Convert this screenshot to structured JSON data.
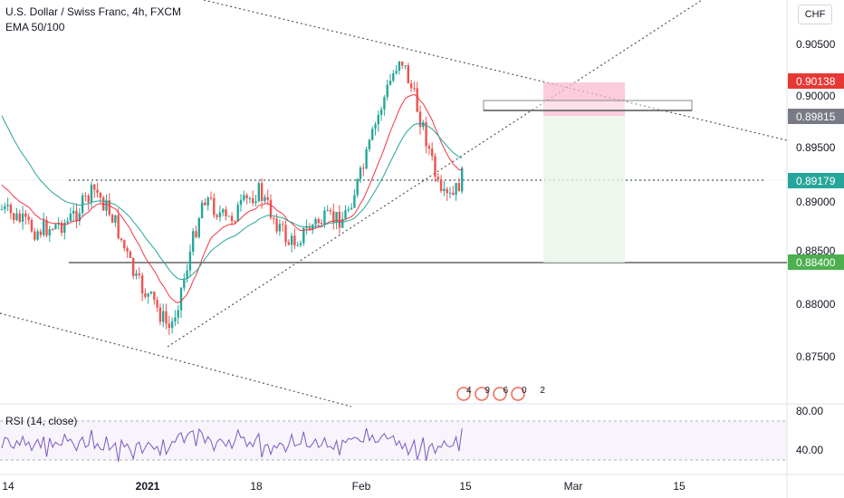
{
  "header": {
    "symbol_title": "U.S. Dollar / Swiss Franc, 4h, FXCM",
    "indicator": "EMA 50/100"
  },
  "currency_button": "CHF",
  "price_axis": {
    "ticks": [
      "0.90500",
      "0.90000",
      "0.89500",
      "0.89000",
      "0.88500",
      "0.88000",
      "0.87500"
    ],
    "badges": [
      {
        "label": "0.90138",
        "color": "#e53935"
      },
      {
        "label": "0.89815",
        "color": "#787b86"
      },
      {
        "label": "0.89179",
        "color": "#26a69a"
      },
      {
        "label": "0.88400",
        "color": "#4caf50"
      }
    ]
  },
  "rsi": {
    "label": "RSI (14, close)",
    "ticks": [
      "80.00",
      "40.00"
    ]
  },
  "time_axis": {
    "ticks": [
      "14",
      "2021",
      "18",
      "Feb",
      "15",
      "Mar",
      "15"
    ]
  },
  "overlay_text": "4 9 6 0 2",
  "colors": {
    "up": "#26a69a",
    "down": "#ef5350",
    "ema_fast": "#f23645",
    "ema_slow": "#26a69a",
    "rsi": "#7e57c2"
  }
}
